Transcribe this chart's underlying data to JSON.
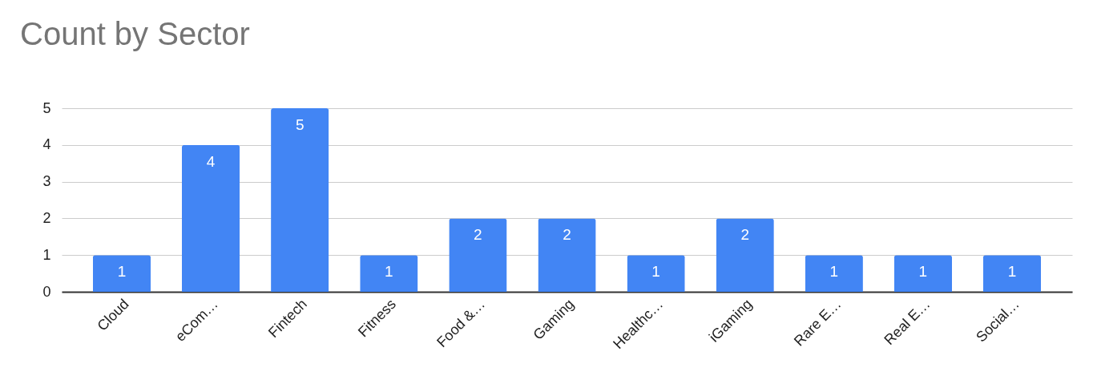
{
  "chart_data": {
    "type": "bar",
    "title": "Count by Sector",
    "categories": [
      "Cloud",
      "eCom…",
      "Fintech",
      "Fitness",
      "Food &…",
      "Gaming",
      "Healthc…",
      "iGaming",
      "Rare E…",
      "Real E…",
      "Social…"
    ],
    "values": [
      1,
      4,
      5,
      1,
      2,
      2,
      1,
      2,
      1,
      1,
      1
    ],
    "color": "#4285f4",
    "ylim": [
      0,
      5
    ],
    "yticks": [
      0,
      1,
      2,
      3,
      4,
      5
    ],
    "grid": "y",
    "data_labels": true
  }
}
